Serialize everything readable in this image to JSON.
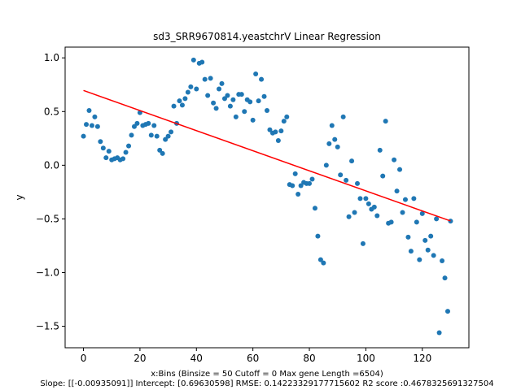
{
  "chart_data": {
    "type": "scatter",
    "title": "sd3_SRR9670814.yeastchrV Linear Regression",
    "xlabel": "x:Bins  (Binsize = 50 Cutoff = 0 Max gene Length =6504)",
    "ylabel": "y",
    "footnote": "Slope: [[-0.00935091]] Intercept: [0.69630598] RMSE: 0.14223329177715602 R2 score :0.4678325691327504",
    "xlim": [
      -6.5,
      136.5
    ],
    "ylim": [
      -1.7,
      1.1
    ],
    "x_ticks": [
      0,
      20,
      40,
      60,
      80,
      100,
      120
    ],
    "y_ticks": [
      -1.5,
      -1.0,
      -0.5,
      0.0,
      0.5,
      1.0
    ],
    "x_tick_labels": [
      "0",
      "20",
      "40",
      "60",
      "80",
      "100",
      "120"
    ],
    "y_tick_labels": [
      "−1.5",
      "−1.0",
      "−0.5",
      "0.0",
      "0.5",
      "1.0"
    ],
    "point_color": "#1f77b4",
    "line_color": "#ff0000",
    "regression": {
      "slope": -0.00935091,
      "intercept": 0.69630598,
      "x_range": [
        0,
        130
      ]
    },
    "series": [
      {
        "x": [
          0,
          1,
          2,
          3,
          4,
          5,
          6,
          7,
          8,
          9,
          10,
          11,
          12,
          13,
          14,
          15,
          16,
          17,
          18,
          19,
          20,
          21,
          22,
          23,
          24,
          25,
          26,
          27,
          28,
          29,
          30,
          31,
          32,
          33,
          34,
          35,
          36,
          37,
          38,
          39,
          40,
          41,
          42,
          43,
          44,
          45,
          46,
          47,
          48,
          49,
          50,
          51,
          52,
          53,
          54,
          55,
          56,
          57,
          58,
          59,
          60,
          61,
          62,
          63,
          64,
          65,
          66,
          67,
          68,
          69,
          70,
          71,
          72,
          73,
          74,
          75,
          76,
          77,
          78,
          79,
          80,
          81,
          82,
          83,
          84,
          85,
          86,
          87,
          88,
          89,
          90,
          91,
          92,
          93,
          94,
          95,
          96,
          97,
          98,
          99,
          100,
          101,
          102,
          103,
          104,
          105,
          106,
          107,
          108,
          109,
          110,
          111,
          112,
          113,
          114,
          115,
          116,
          117,
          118,
          119,
          120,
          121,
          122,
          123,
          124,
          125,
          126,
          127,
          128,
          129,
          130
        ],
        "y": [
          0.27,
          0.38,
          0.51,
          0.37,
          0.45,
          0.36,
          0.22,
          0.16,
          0.07,
          0.13,
          0.05,
          0.06,
          0.07,
          0.05,
          0.06,
          0.12,
          0.18,
          0.28,
          0.36,
          0.39,
          0.49,
          0.37,
          0.38,
          0.39,
          0.28,
          0.37,
          0.27,
          0.14,
          0.11,
          0.24,
          0.27,
          0.31,
          0.55,
          0.39,
          0.6,
          0.56,
          0.62,
          0.68,
          0.73,
          0.98,
          0.71,
          0.95,
          0.96,
          0.8,
          0.65,
          0.81,
          0.58,
          0.53,
          0.71,
          0.76,
          0.62,
          0.65,
          0.55,
          0.61,
          0.45,
          0.66,
          0.66,
          0.5,
          0.61,
          0.59,
          0.42,
          0.85,
          0.6,
          0.8,
          0.64,
          0.51,
          0.33,
          0.3,
          0.31,
          0.23,
          0.32,
          0.41,
          0.45,
          -0.18,
          -0.19,
          -0.08,
          -0.27,
          -0.19,
          -0.16,
          -0.17,
          -0.17,
          -0.13,
          -0.4,
          -0.66,
          -0.88,
          -0.91,
          0.0,
          0.2,
          0.37,
          0.24,
          0.17,
          -0.09,
          0.45,
          -0.14,
          -0.48,
          0.04,
          -0.44,
          -0.17,
          -0.31,
          -0.73,
          -0.31,
          -0.36,
          -0.41,
          -0.39,
          -0.47,
          0.14,
          -0.1,
          0.41,
          -0.54,
          -0.53,
          0.05,
          -0.24,
          -0.04,
          -0.44,
          -0.32,
          -0.67,
          -0.8,
          -0.31,
          -0.53,
          -0.88,
          -0.45,
          -0.7,
          -0.79,
          -0.66,
          -0.84,
          -0.5,
          -1.56,
          -0.89,
          -1.05,
          -1.36,
          -0.52
        ]
      }
    ]
  }
}
